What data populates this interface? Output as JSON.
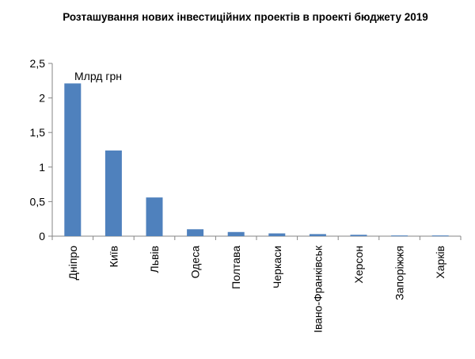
{
  "chart_data": {
    "type": "bar",
    "title": "Розташування нових інвестиційних проектів в проекті бюджету 2019",
    "annotation": "Млрд грн",
    "categories": [
      "Дніпро",
      "Київ",
      "Львів",
      "Одеса",
      "Полтава",
      "Черкаси",
      "Івано-Франківськ",
      "Херсон",
      "Запоріжжя",
      "Харків"
    ],
    "values": [
      2.21,
      1.24,
      0.56,
      0.1,
      0.06,
      0.04,
      0.03,
      0.02,
      0.01,
      0.01
    ],
    "ylim": [
      0,
      2.5
    ],
    "yticks": [
      "0",
      "0,5",
      "1",
      "1,5",
      "2",
      "2,5"
    ],
    "grid": false,
    "bar_color": "#4F81BD",
    "xlabel": "",
    "ylabel": ""
  }
}
